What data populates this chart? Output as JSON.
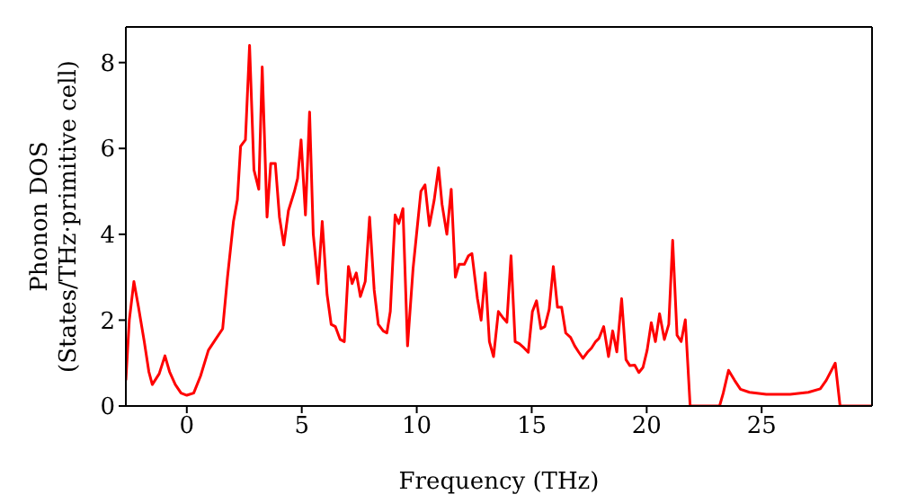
{
  "chart_data": {
    "type": "line",
    "xlabel": "Frequency (THz)",
    "ylabel": "Phonon DOS\n(States/THz·primitive cell)",
    "xlim": [
      -2.65,
      29.8
    ],
    "ylim": [
      0,
      8.83
    ],
    "xticks": [
      0,
      5,
      10,
      15,
      20,
      25
    ],
    "yticks": [
      0,
      2,
      4,
      6,
      8
    ],
    "grid": false,
    "legend": false,
    "marker": "none",
    "line_style": "solid",
    "series": [
      {
        "color": "#ff0000",
        "x": [
          -2.65,
          -2.5,
          -2.3,
          -2.1,
          -1.85,
          -1.65,
          -1.5,
          -1.2,
          -0.95,
          -0.75,
          -0.5,
          -0.25,
          0,
          0.3,
          0.6,
          0.94,
          1.25,
          1.56,
          1.77,
          2.03,
          2.2,
          2.34,
          2.55,
          2.73,
          2.92,
          3.13,
          3.28,
          3.49,
          3.65,
          3.85,
          4.03,
          4.22,
          4.42,
          4.68,
          4.82,
          4.97,
          5.16,
          5.34,
          5.5,
          5.71,
          5.89,
          6.1,
          6.28,
          6.46,
          6.67,
          6.85,
          7.03,
          7.19,
          7.37,
          7.55,
          7.76,
          7.95,
          8.15,
          8.33,
          8.54,
          8.7,
          8.85,
          9.06,
          9.22,
          9.4,
          9.6,
          9.84,
          10.18,
          10.36,
          10.55,
          10.76,
          10.95,
          11.1,
          11.31,
          11.5,
          11.68,
          11.84,
          12.07,
          12.25,
          12.4,
          12.64,
          12.8,
          12.98,
          13.16,
          13.34,
          13.55,
          13.76,
          13.92,
          14.1,
          14.28,
          14.46,
          14.67,
          14.85,
          15.03,
          15.21,
          15.4,
          15.57,
          15.76,
          15.94,
          16.12,
          16.3,
          16.48,
          16.69,
          16.87,
          17.05,
          17.23,
          17.42,
          17.6,
          17.78,
          17.92,
          18.13,
          18.34,
          18.52,
          18.7,
          18.91,
          19.1,
          19.27,
          19.48,
          19.66,
          19.84,
          20.02,
          20.2,
          20.38,
          20.56,
          20.77,
          20.96,
          21.13,
          21.32,
          21.5,
          21.68,
          21.89,
          23.17,
          23.33,
          23.56,
          23.82,
          24.08,
          24.47,
          25.2,
          26.24,
          27.03,
          27.55,
          27.81,
          28.2,
          28.41,
          29.8
        ],
        "values": [
          0.6,
          2.0,
          2.9,
          2.3,
          1.5,
          0.8,
          0.5,
          0.75,
          1.17,
          0.8,
          0.5,
          0.3,
          0.25,
          0.3,
          0.7,
          1.3,
          1.55,
          1.8,
          3.0,
          4.3,
          4.8,
          6.05,
          6.2,
          8.4,
          5.5,
          5.05,
          7.9,
          4.4,
          5.65,
          5.65,
          4.4,
          3.75,
          4.55,
          5.0,
          5.3,
          6.2,
          4.45,
          6.85,
          4.0,
          2.85,
          4.3,
          2.6,
          1.9,
          1.85,
          1.55,
          1.5,
          3.25,
          2.85,
          3.1,
          2.55,
          2.9,
          4.4,
          2.7,
          1.9,
          1.75,
          1.7,
          2.2,
          4.45,
          4.25,
          4.6,
          1.4,
          3.2,
          5.0,
          5.15,
          4.2,
          4.8,
          5.55,
          4.7,
          4.0,
          5.05,
          3.0,
          3.3,
          3.3,
          3.5,
          3.55,
          2.5,
          2.0,
          3.1,
          1.5,
          1.15,
          2.2,
          2.05,
          1.95,
          3.5,
          1.5,
          1.45,
          1.35,
          1.25,
          2.2,
          2.45,
          1.8,
          1.85,
          2.25,
          3.25,
          2.3,
          2.3,
          1.7,
          1.6,
          1.4,
          1.25,
          1.11,
          1.25,
          1.35,
          1.5,
          1.57,
          1.85,
          1.15,
          1.75,
          1.26,
          2.5,
          1.08,
          0.94,
          0.95,
          0.78,
          0.9,
          1.3,
          1.94,
          1.5,
          2.15,
          1.55,
          1.9,
          3.86,
          1.65,
          1.5,
          2.01,
          0,
          0,
          0.3,
          0.83,
          0.6,
          0.39,
          0.32,
          0.27,
          0.27,
          0.32,
          0.4,
          0.6,
          1.0,
          0,
          0
        ]
      }
    ]
  }
}
